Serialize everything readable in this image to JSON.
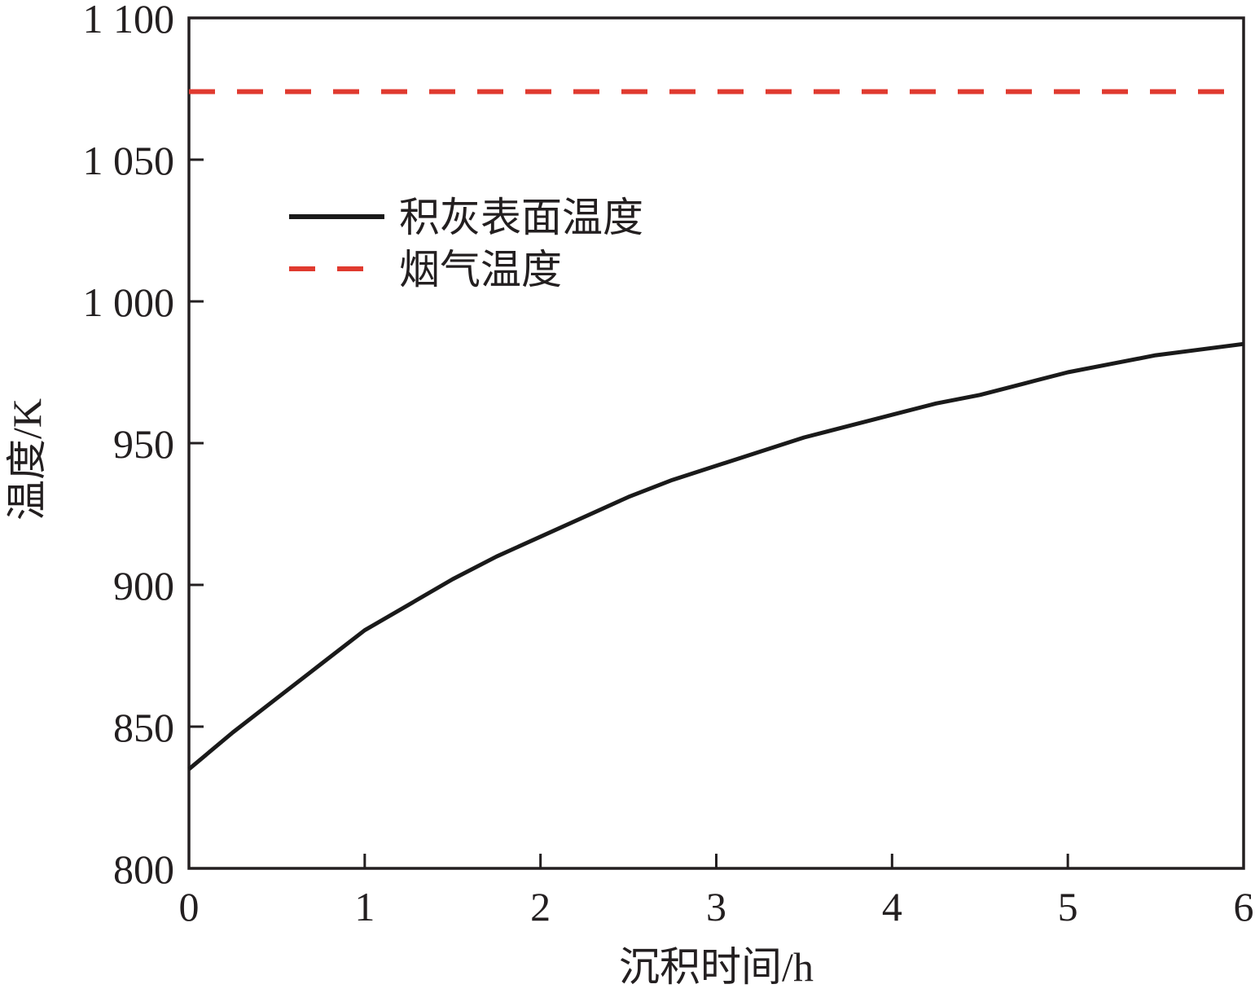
{
  "chart_data": {
    "type": "line",
    "xlabel": "沉积时间/h",
    "ylabel": "温度/K",
    "xlim": [
      0,
      6
    ],
    "ylim": [
      800,
      1100
    ],
    "x_ticks": [
      0,
      1,
      2,
      3,
      4,
      5,
      6
    ],
    "x_tick_labels": [
      "0",
      "1",
      "2",
      "3",
      "4",
      "5",
      "6"
    ],
    "y_ticks": [
      800,
      850,
      900,
      950,
      1000,
      1050,
      1100
    ],
    "y_tick_labels": [
      "800",
      "850",
      "900",
      "950",
      "1 000",
      "1 050",
      "1 100"
    ],
    "grid": false,
    "legend_position": "upper-left",
    "series": [
      {
        "name": "积灰表面温度",
        "style": "solid",
        "color": "#1a1a1a",
        "x": [
          0,
          0.25,
          0.5,
          0.75,
          1,
          1.25,
          1.5,
          1.75,
          2,
          2.25,
          2.5,
          2.75,
          3,
          3.25,
          3.5,
          3.75,
          4,
          4.25,
          4.5,
          4.75,
          5,
          5.25,
          5.5,
          5.75,
          6
        ],
        "y": [
          835,
          848,
          860,
          872,
          884,
          893,
          902,
          910,
          917,
          924,
          931,
          937,
          942,
          947,
          952,
          956,
          960,
          964,
          967,
          971,
          975,
          978,
          981,
          983,
          985
        ]
      },
      {
        "name": "烟气温度",
        "style": "dashed",
        "color": "#e03a2f",
        "x": [
          0,
          6
        ],
        "y": [
          1074,
          1074
        ]
      }
    ]
  }
}
